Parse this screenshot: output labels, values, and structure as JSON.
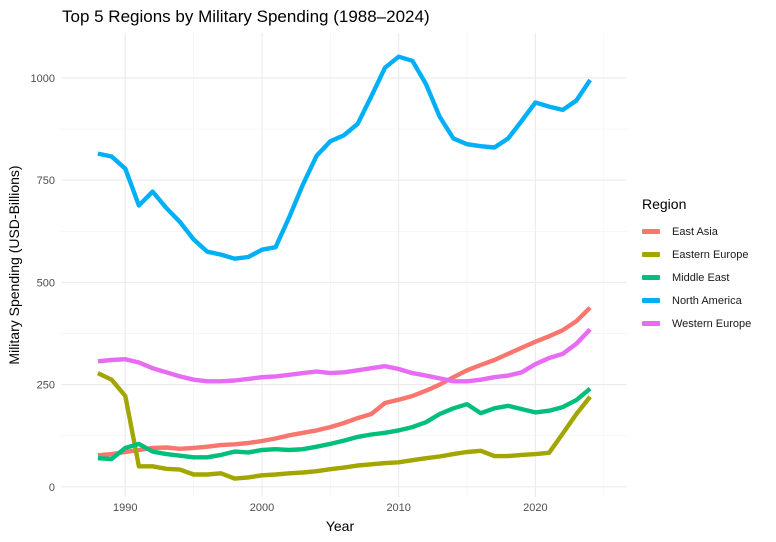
{
  "chart_data": {
    "type": "line",
    "title": "Top 5 Regions by Military Spending (1988–2024)",
    "xlabel": "Year",
    "ylabel": "Military Spending (USD-Billions)",
    "xlim": [
      1985.3,
      2026.7
    ],
    "ylim": [
      -25,
      1110
    ],
    "x_ticks": [
      1990,
      2000,
      2010,
      2020
    ],
    "y_ticks": [
      0,
      250,
      500,
      750,
      1000
    ],
    "grid": true,
    "legend_title": "Region",
    "legend_position": "right",
    "x": [
      1988,
      1989,
      1990,
      1991,
      1992,
      1993,
      1994,
      1995,
      1996,
      1997,
      1998,
      1999,
      2000,
      2001,
      2002,
      2003,
      2004,
      2005,
      2006,
      2007,
      2008,
      2009,
      2010,
      2011,
      2012,
      2013,
      2014,
      2015,
      2016,
      2017,
      2018,
      2019,
      2020,
      2021,
      2022,
      2023,
      2024
    ],
    "series": [
      {
        "name": "East Asia",
        "color": "#F8766D",
        "values": [
          77,
          80,
          85,
          90,
          95,
          96,
          93,
          95,
          98,
          102,
          104,
          107,
          112,
          118,
          126,
          132,
          138,
          146,
          156,
          168,
          178,
          205,
          213,
          222,
          235,
          250,
          268,
          285,
          298,
          310,
          325,
          340,
          355,
          368,
          383,
          405,
          438
        ]
      },
      {
        "name": "Eastern Europe",
        "color": "#A3A500",
        "values": [
          278,
          262,
          222,
          50,
          50,
          44,
          42,
          30,
          30,
          33,
          20,
          23,
          28,
          30,
          33,
          35,
          38,
          43,
          47,
          52,
          55,
          58,
          60,
          65,
          70,
          74,
          80,
          85,
          88,
          75,
          75,
          78,
          80,
          83,
          130,
          178,
          220
        ]
      },
      {
        "name": "Middle East",
        "color": "#00BF7D",
        "values": [
          70,
          68,
          95,
          105,
          86,
          80,
          76,
          72,
          72,
          78,
          86,
          84,
          90,
          92,
          90,
          92,
          98,
          105,
          113,
          122,
          128,
          132,
          138,
          146,
          158,
          178,
          192,
          202,
          180,
          192,
          198,
          190,
          182,
          186,
          195,
          212,
          240
        ]
      },
      {
        "name": "North America",
        "color": "#00B0F6",
        "values": [
          815,
          808,
          778,
          688,
          722,
          682,
          648,
          605,
          575,
          568,
          558,
          562,
          580,
          586,
          660,
          740,
          810,
          845,
          860,
          888,
          955,
          1025,
          1052,
          1042,
          985,
          905,
          852,
          838,
          833,
          830,
          852,
          895,
          940,
          930,
          922,
          945,
          995
        ]
      },
      {
        "name": "Western Europe",
        "color": "#E76BF3",
        "values": [
          307,
          310,
          312,
          304,
          290,
          280,
          270,
          262,
          258,
          258,
          260,
          264,
          268,
          270,
          274,
          278,
          282,
          278,
          280,
          285,
          290,
          295,
          288,
          278,
          272,
          265,
          258,
          258,
          262,
          268,
          272,
          280,
          300,
          315,
          325,
          350,
          385
        ]
      }
    ]
  }
}
